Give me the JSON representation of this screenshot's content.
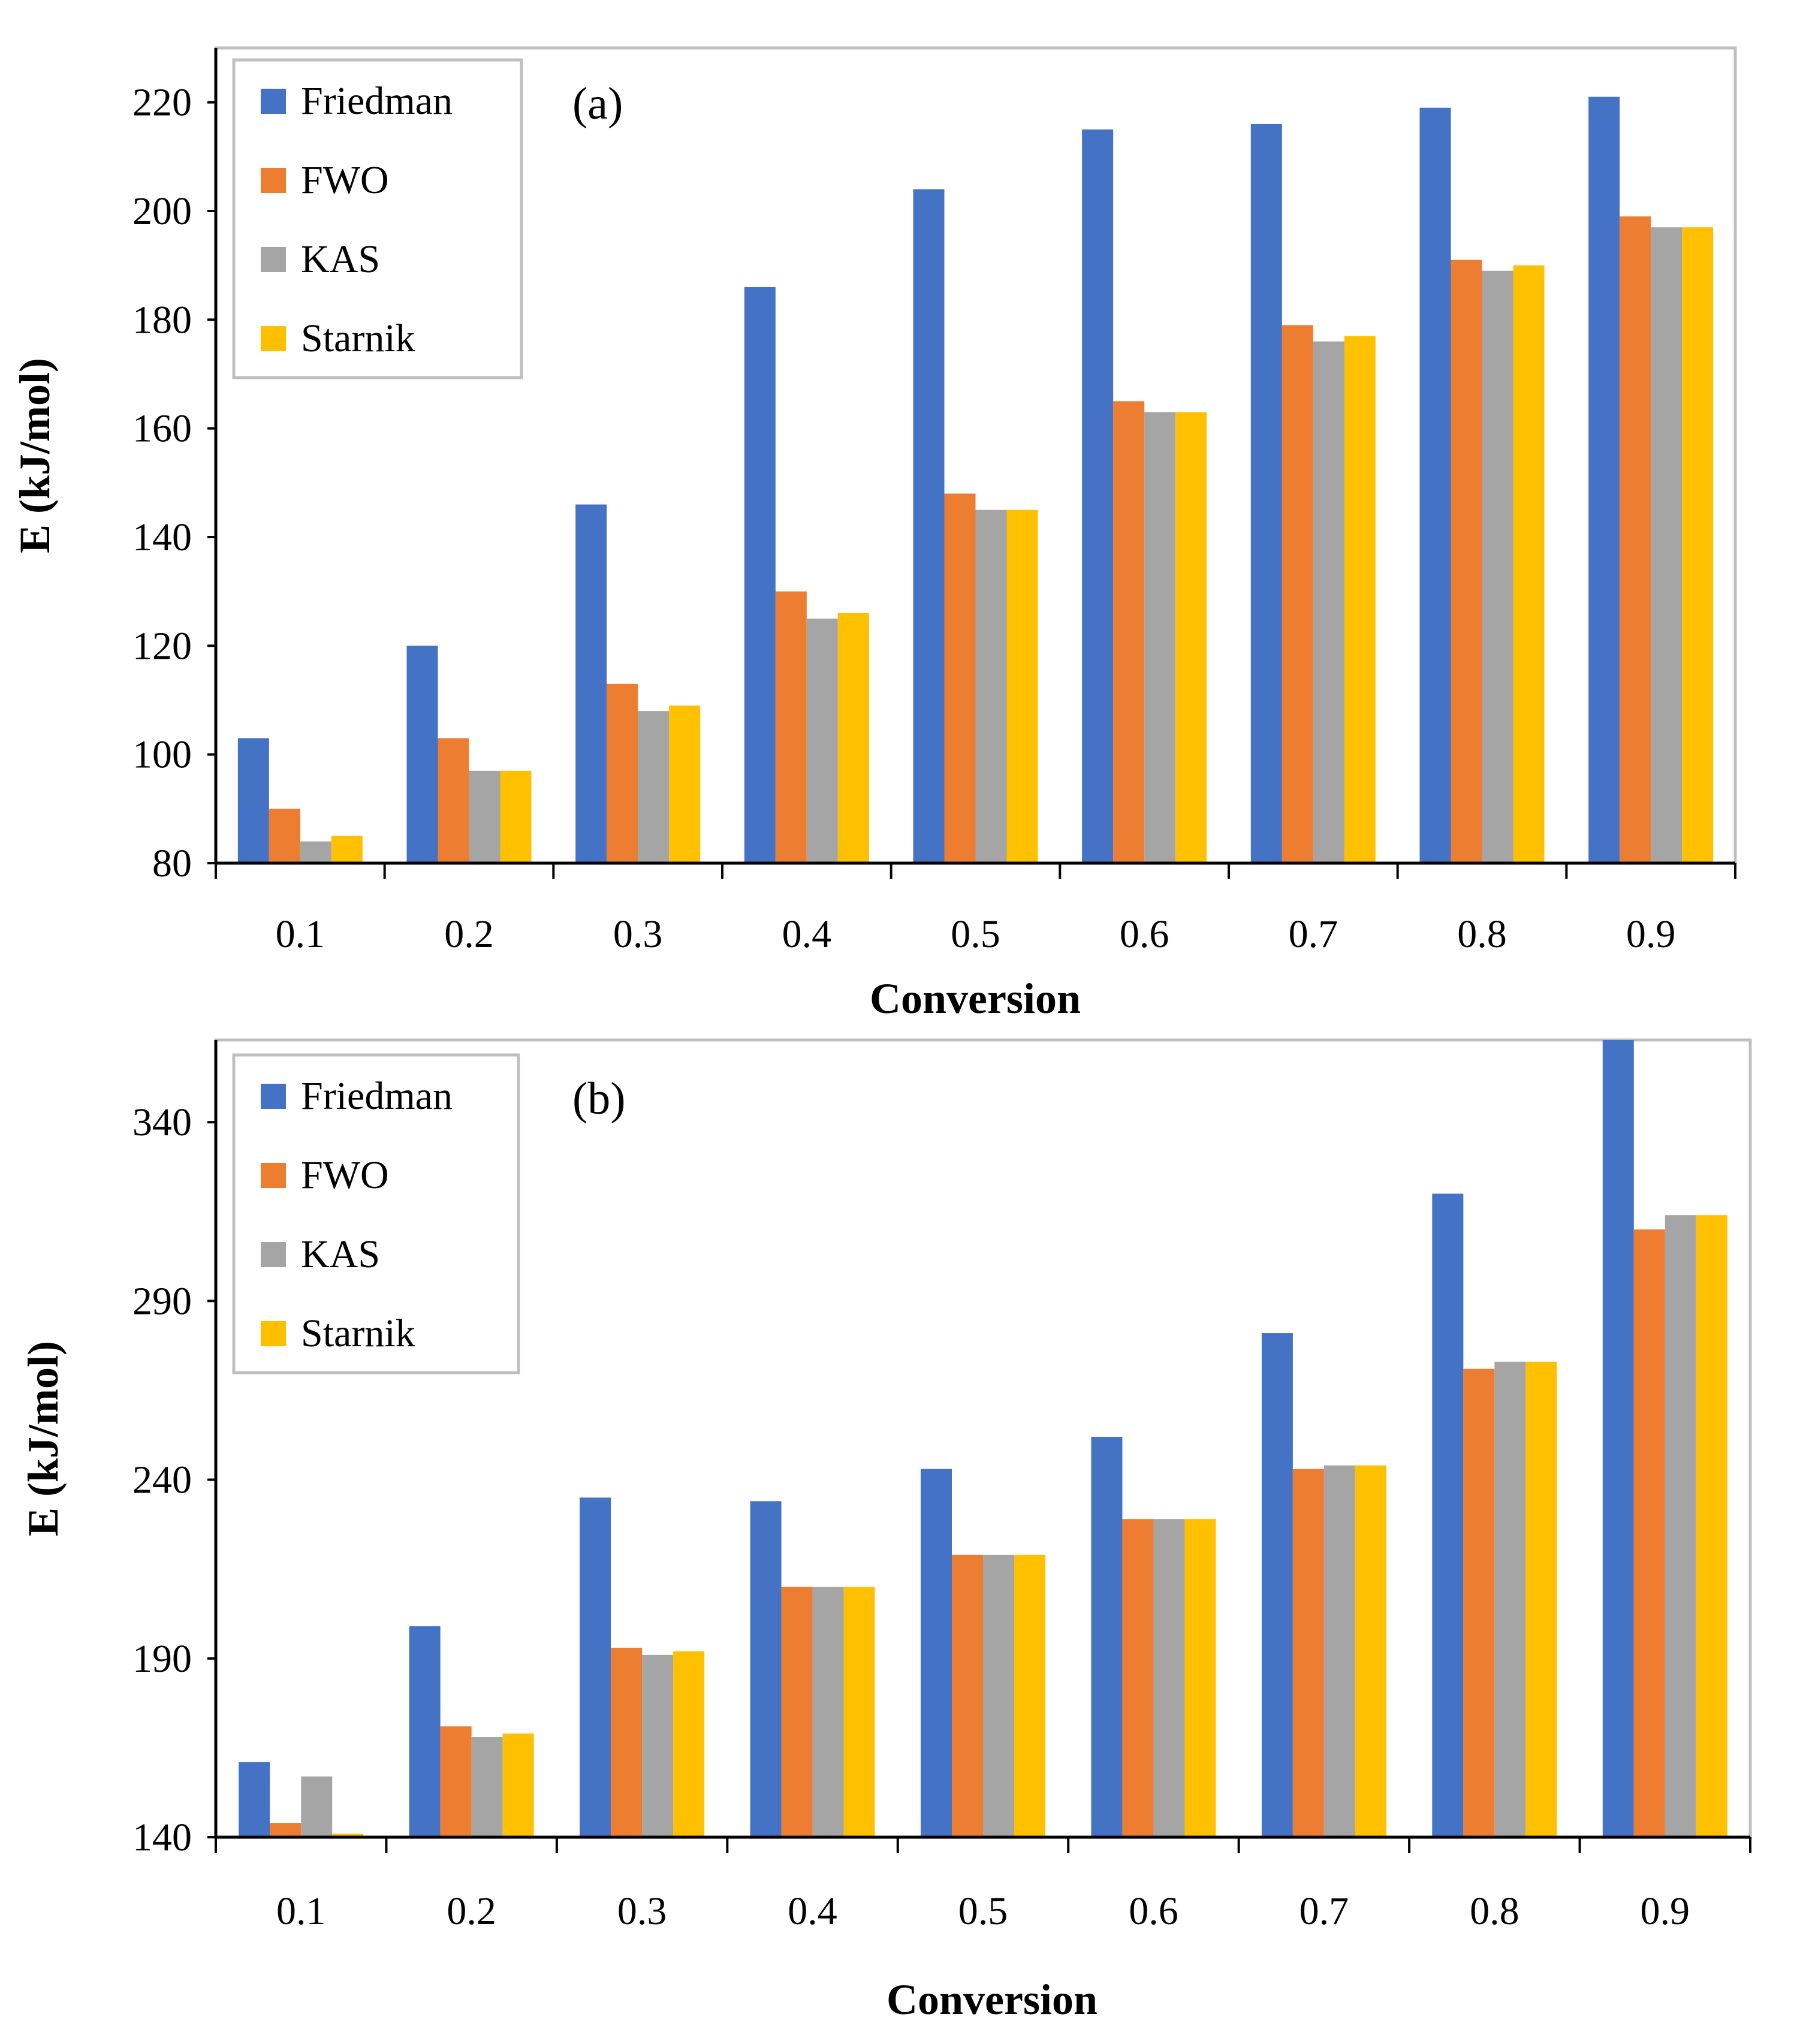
{
  "colors": {
    "Friedman": "#4472C4",
    "FWO": "#ED7D31",
    "KAS": "#A5A5A5",
    "Starnik": "#FFC000",
    "axis": "#000000",
    "legend_border": "#BFBFBF"
  },
  "chart_data": [
    {
      "type": "bar",
      "panel_label": "(a)",
      "xlabel": "Conversion",
      "ylabel": "E (kJ/mol)",
      "categories": [
        "0.1",
        "0.2",
        "0.3",
        "0.4",
        "0.5",
        "0.6",
        "0.7",
        "0.8",
        "0.9"
      ],
      "ylim": [
        80,
        230
      ],
      "yticks": [
        80,
        100,
        120,
        140,
        160,
        180,
        200,
        220
      ],
      "legend_position": "top-left",
      "series": [
        {
          "name": "Friedman",
          "values": [
            103,
            120,
            146,
            186,
            204,
            215,
            216,
            219,
            221
          ]
        },
        {
          "name": "FWO",
          "values": [
            90,
            103,
            113,
            130,
            148,
            165,
            179,
            191,
            199
          ]
        },
        {
          "name": "KAS",
          "values": [
            84,
            97,
            108,
            125,
            145,
            163,
            176,
            189,
            197
          ]
        },
        {
          "name": "Starnik",
          "values": [
            85,
            97,
            109,
            126,
            145,
            163,
            177,
            190,
            197
          ]
        }
      ]
    },
    {
      "type": "bar",
      "panel_label": "(b)",
      "xlabel": "Conversion",
      "ylabel": "E (kJ/mol)",
      "categories": [
        "0.1",
        "0.2",
        "0.3",
        "0.4",
        "0.5",
        "0.6",
        "0.7",
        "0.8",
        "0.9"
      ],
      "ylim": [
        140,
        363
      ],
      "yticks": [
        140,
        190,
        240,
        290,
        340
      ],
      "legend_position": "top-left",
      "series": [
        {
          "name": "Friedman",
          "values": [
            161,
            199,
            235,
            234,
            243,
            252,
            281,
            320,
            366
          ]
        },
        {
          "name": "FWO",
          "values": [
            144,
            171,
            193,
            210,
            219,
            229,
            243,
            271,
            310
          ]
        },
        {
          "name": "KAS",
          "values": [
            157,
            168,
            191,
            210,
            219,
            229,
            244,
            273,
            314
          ]
        },
        {
          "name": "Starnik",
          "values": [
            141,
            169,
            192,
            210,
            219,
            229,
            244,
            273,
            314
          ]
        }
      ]
    }
  ]
}
